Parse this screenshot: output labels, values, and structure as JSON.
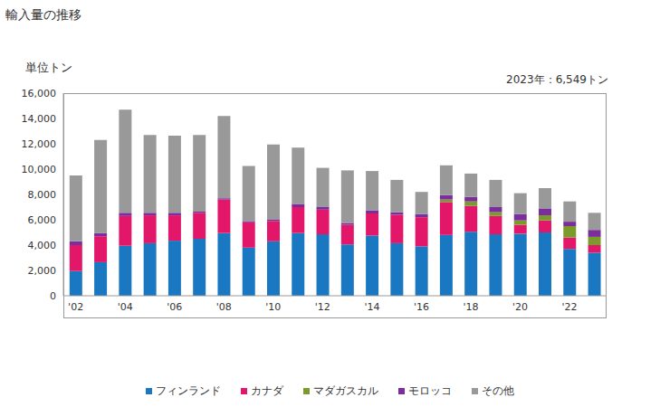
{
  "chart_data": {
    "type": "bar",
    "stacked": true,
    "grid": false,
    "legend": "bottom",
    "title": "輸入量の推移",
    "y_label": "単位トン",
    "annotation": "2023年：6,549トン",
    "categories": [
      "'02",
      null,
      "'04",
      null,
      "'06",
      null,
      "'08",
      null,
      "'10",
      null,
      "'12",
      null,
      "'14",
      null,
      "'16",
      null,
      "'18",
      null,
      "'20",
      null,
      "'22",
      null
    ],
    "series": [
      {
        "name": "フィンランド",
        "color": "#1a78c2",
        "values": [
          1950,
          2650,
          3950,
          4150,
          4350,
          4500,
          4950,
          3800,
          4300,
          4950,
          4850,
          4050,
          4750,
          4150,
          3900,
          4800,
          5050,
          4850,
          4900,
          5000,
          3700,
          3400
        ]
      },
      {
        "name": "カナダ",
        "color": "#e3176a",
        "values": [
          2050,
          2050,
          2350,
          2200,
          2000,
          2050,
          2650,
          2000,
          1600,
          2050,
          1950,
          1550,
          1750,
          2250,
          2300,
          2600,
          2050,
          1450,
          700,
          950,
          900,
          600
        ]
      },
      {
        "name": "マダガスカル",
        "color": "#7a9a2a",
        "values": [
          0,
          0,
          0,
          0,
          0,
          0,
          0,
          0,
          0,
          0,
          0,
          0,
          0,
          0,
          0,
          200,
          350,
          300,
          350,
          400,
          900,
          650
        ]
      },
      {
        "name": "モロッコ",
        "color": "#7b2d9b",
        "values": [
          300,
          250,
          250,
          200,
          200,
          100,
          100,
          100,
          100,
          250,
          200,
          150,
          250,
          200,
          250,
          350,
          350,
          400,
          500,
          550,
          350,
          550
        ]
      },
      {
        "name": "その他",
        "color": "#999999",
        "values": [
          5200,
          7350,
          8150,
          6150,
          6100,
          6050,
          6500,
          4350,
          5950,
          4450,
          3100,
          4150,
          3100,
          2550,
          1750,
          2350,
          1850,
          2150,
          1650,
          1600,
          1600,
          1349
        ]
      }
    ],
    "ylim": [
      0,
      16000
    ],
    "yticks": [
      0,
      {
        "value": 2000,
        "label": "2,000"
      },
      {
        "value": 4000,
        "label": "4,000"
      },
      {
        "value": 6000,
        "label": "6,000"
      },
      {
        "value": 8000,
        "label": "8,000"
      },
      {
        "value": 10000,
        "label": "10,000"
      },
      {
        "value": 12000,
        "label": "12,000"
      },
      {
        "value": 14000,
        "label": "14,000"
      },
      {
        "value": 16000,
        "label": "16,000"
      }
    ]
  }
}
